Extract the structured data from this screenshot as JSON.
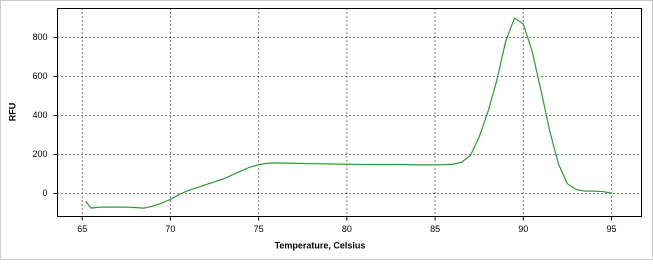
{
  "chart_data": {
    "type": "line",
    "x_label": "Temperature, Celsius",
    "y_label": "RFU",
    "x": [
      65.2,
      65.5,
      66,
      66.5,
      67,
      67.5,
      68,
      68.5,
      69,
      69.5,
      70,
      70.5,
      71,
      71.5,
      72,
      72.5,
      73,
      73.5,
      74,
      74.5,
      75,
      75.5,
      76,
      77,
      78,
      79,
      80,
      81,
      82,
      83,
      84,
      85,
      85.5,
      86,
      86.5,
      87,
      87.5,
      88,
      88.5,
      89,
      89.5,
      90,
      90.5,
      91,
      91.5,
      92,
      92.5,
      93,
      93.5,
      94,
      94.5,
      95
    ],
    "values": [
      -40,
      -75,
      -70,
      -70,
      -70,
      -70,
      -72,
      -75,
      -65,
      -50,
      -30,
      -5,
      15,
      30,
      45,
      60,
      75,
      95,
      115,
      135,
      148,
      155,
      157,
      155,
      153,
      152,
      150,
      149,
      148,
      149,
      147,
      147,
      148,
      150,
      160,
      195,
      290,
      420,
      580,
      780,
      900,
      870,
      730,
      530,
      320,
      150,
      50,
      20,
      12,
      12,
      10,
      2
    ],
    "color": "#2e9b2e",
    "xlim": [
      63.6,
      96.7
    ],
    "ylim": [
      -118,
      949
    ],
    "xticks": [
      65,
      70,
      75,
      80,
      85,
      90,
      95
    ],
    "yticks": [
      0,
      200,
      400,
      600,
      800
    ],
    "grid": true
  }
}
